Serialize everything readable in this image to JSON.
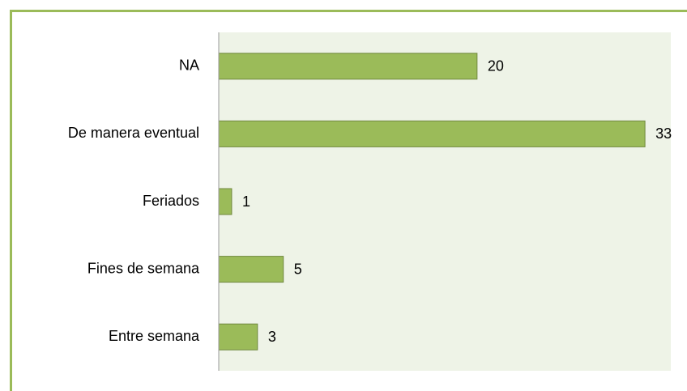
{
  "chart_data": {
    "type": "hbar",
    "categories": [
      "NA",
      "De manera eventual",
      "Feriados",
      "Fines de semana",
      "Entre semana"
    ],
    "values": [
      20,
      33,
      1,
      5,
      3
    ],
    "color": "#9bbb59",
    "xlim": [
      0,
      35
    ]
  }
}
